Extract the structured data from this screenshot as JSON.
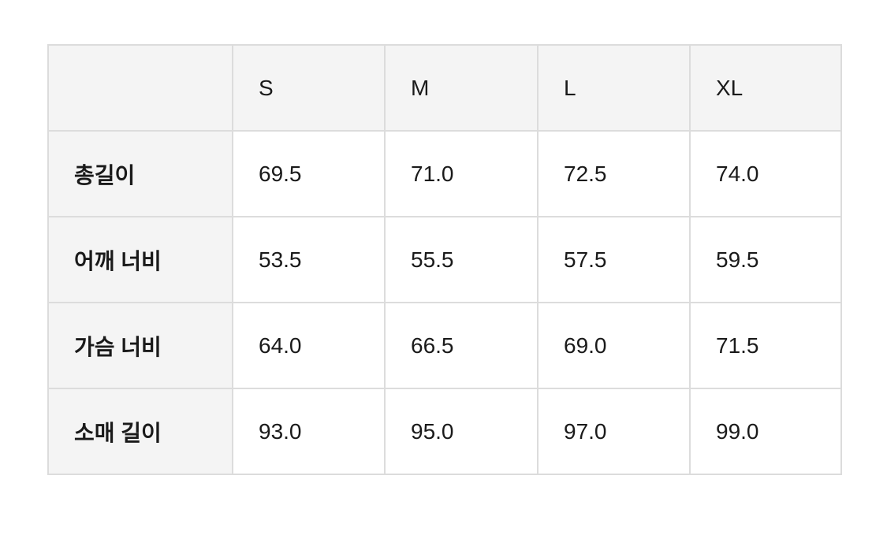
{
  "table": {
    "header": [
      "S",
      "M",
      "L",
      "XL"
    ],
    "rows": [
      [
        "총길이",
        "69.5",
        "71.0",
        "72.5",
        "74.0"
      ],
      [
        "어깨 너비",
        "53.5",
        "55.5",
        "57.5",
        "59.5"
      ],
      [
        "가슴 너비",
        "64.0",
        "66.5",
        "69.0",
        "71.5"
      ],
      [
        "소매 길이",
        "93.0",
        "95.0",
        "97.0",
        "99.0"
      ]
    ]
  }
}
